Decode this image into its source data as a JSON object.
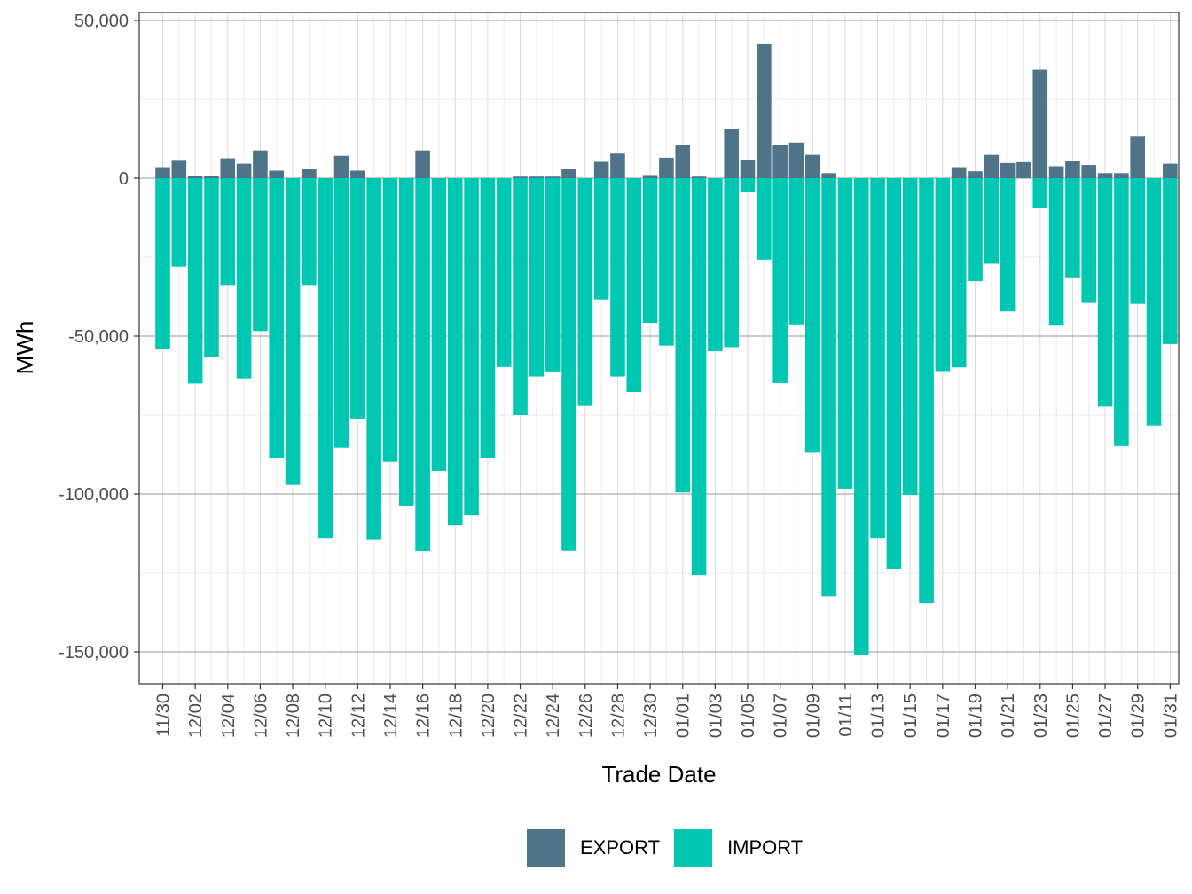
{
  "chart_data": {
    "type": "bar",
    "stacked": true,
    "xlabel": "Trade Date",
    "ylabel": "MWh",
    "ylim": [
      -160000,
      50000
    ],
    "yticks": [
      50000,
      0,
      -50000,
      -100000,
      -150000
    ],
    "ytick_labels": [
      "50,000",
      "0",
      "-50,000",
      "-100,000",
      "-150,000"
    ],
    "grid": true,
    "legend_position": "bottom",
    "categories": [
      "11/30",
      "12/01",
      "12/02",
      "12/03",
      "12/04",
      "12/05",
      "12/06",
      "12/07",
      "12/08",
      "12/09",
      "12/10",
      "12/11",
      "12/12",
      "12/13",
      "12/14",
      "12/15",
      "12/16",
      "12/17",
      "12/18",
      "12/19",
      "12/20",
      "12/21",
      "12/22",
      "12/23",
      "12/24",
      "12/25",
      "12/26",
      "12/27",
      "12/28",
      "12/29",
      "12/30",
      "12/31",
      "01/01",
      "01/02",
      "01/03",
      "01/04",
      "01/05",
      "01/06",
      "01/07",
      "01/08",
      "01/09",
      "01/10",
      "01/11",
      "01/12",
      "01/13",
      "01/14",
      "01/15",
      "01/16",
      "01/17",
      "01/18",
      "01/19",
      "01/20",
      "01/21",
      "01/22",
      "01/23",
      "01/24",
      "01/25",
      "01/26",
      "01/27",
      "01/28",
      "01/29",
      "01/30",
      "01/31"
    ],
    "xtick_labels": [
      "11/30",
      "12/02",
      "12/04",
      "12/06",
      "12/08",
      "12/10",
      "12/12",
      "12/14",
      "12/16",
      "12/18",
      "12/20",
      "12/22",
      "12/24",
      "12/26",
      "12/28",
      "12/30",
      "01/01",
      "01/03",
      "01/05",
      "01/07",
      "01/09",
      "01/11",
      "01/13",
      "01/15",
      "01/17",
      "01/19",
      "01/21",
      "01/23",
      "01/25",
      "01/27",
      "01/29",
      "01/31"
    ],
    "series": [
      {
        "name": "EXPORT",
        "color": "#4f7389",
        "values": [
          3500,
          5800,
          600,
          600,
          6300,
          4600,
          8800,
          2400,
          0,
          3000,
          0,
          7100,
          2400,
          0,
          0,
          0,
          8800,
          0,
          0,
          0,
          0,
          0,
          500,
          500,
          500,
          3000,
          0,
          5200,
          7800,
          0,
          1000,
          6500,
          10600,
          500,
          0,
          15600,
          5900,
          42400,
          10400,
          11300,
          7400,
          1600,
          0,
          0,
          0,
          0,
          0,
          0,
          0,
          3500,
          2200,
          7400,
          4800,
          5100,
          34400,
          3800,
          5500,
          4200,
          1600,
          1600,
          13400,
          0,
          4600
        ]
      },
      {
        "name": "IMPORT",
        "color": "#00c7b2",
        "values": [
          -54000,
          -28000,
          -65000,
          -56500,
          -33800,
          -63400,
          -48400,
          -88500,
          -97100,
          -33800,
          -114100,
          -85300,
          -76100,
          -114500,
          -89800,
          -103900,
          -118000,
          -92700,
          -109900,
          -106800,
          -88500,
          -59800,
          -75000,
          -62800,
          -61200,
          -117900,
          -72100,
          -38400,
          -62800,
          -67700,
          -45800,
          -53000,
          -99500,
          -125600,
          -54800,
          -53500,
          -4300,
          -25800,
          -64900,
          -46300,
          -86900,
          -132400,
          -98300,
          -151000,
          -114100,
          -123600,
          -100300,
          -134600,
          -61100,
          -59900,
          -32600,
          -27100,
          -42200,
          0,
          -9500,
          -46700,
          -31400,
          -39500,
          -72300,
          -84800,
          -39800,
          -78300,
          -52500
        ]
      }
    ]
  }
}
